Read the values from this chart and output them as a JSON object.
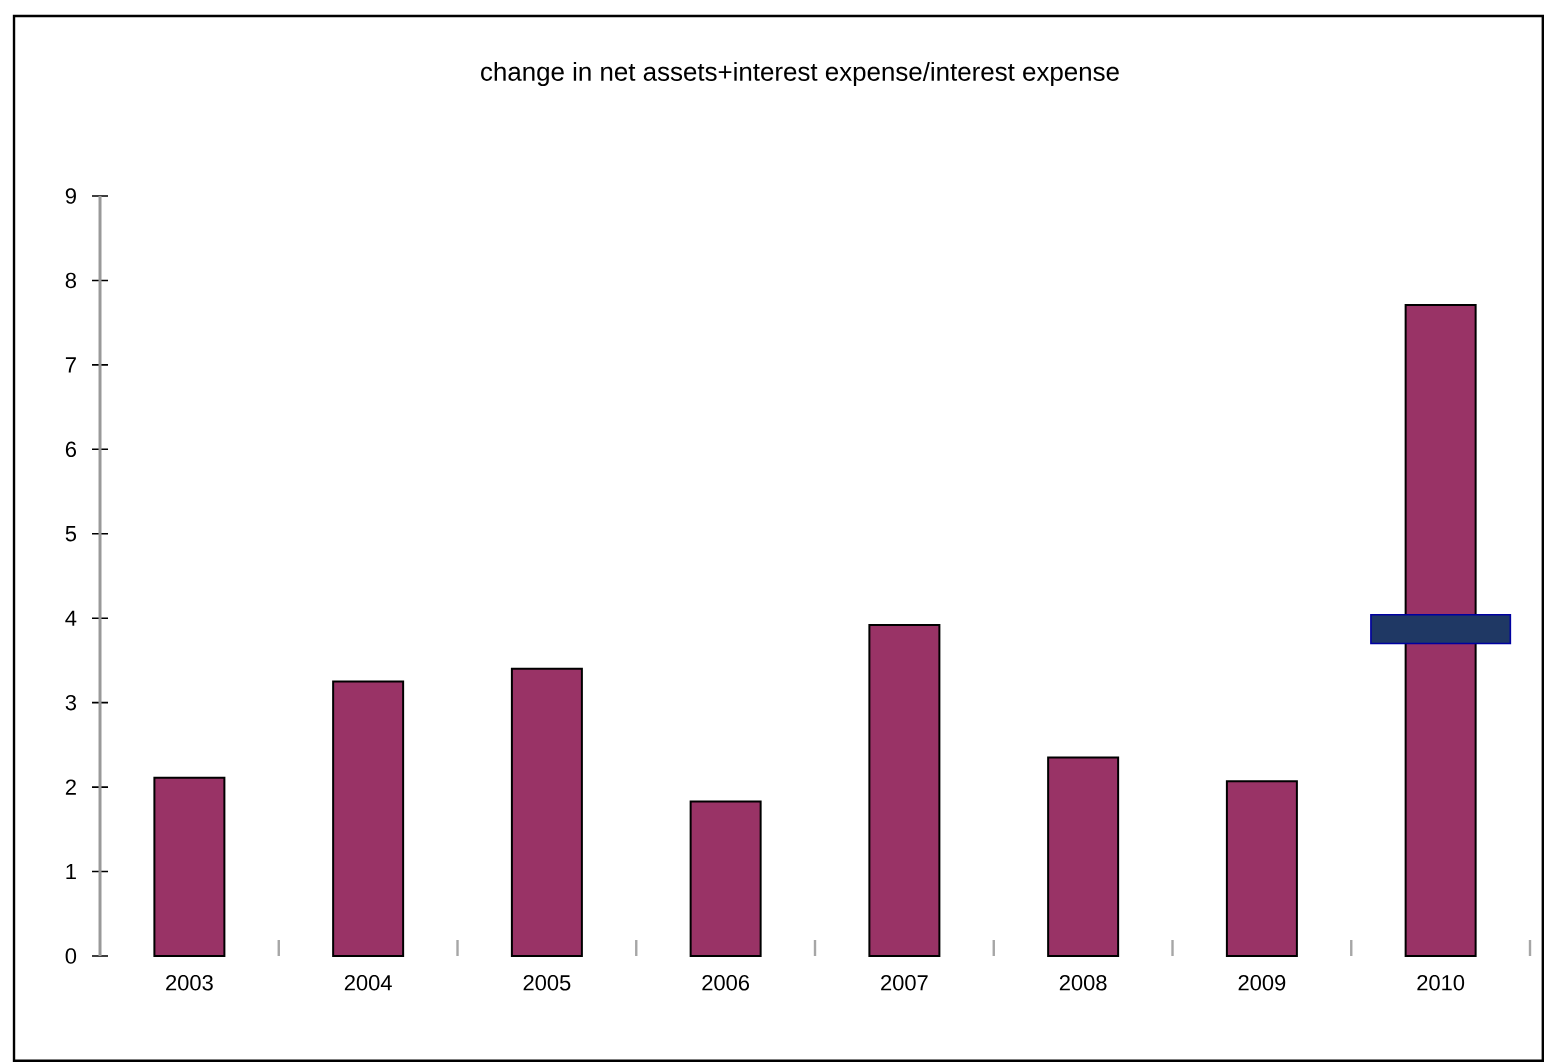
{
  "chart_data": {
    "type": "bar",
    "title": "change in net assets+interest expense/interest expense",
    "categories": [
      "2003",
      "2004",
      "2005",
      "2006",
      "2007",
      "2008",
      "2009",
      "2010"
    ],
    "series": [
      {
        "color": "#993366",
        "values": [
          2.11,
          3.25,
          3.4,
          1.83,
          3.92,
          2.35,
          2.07,
          7.71
        ]
      },
      {
        "color": "#1f3864",
        "base": [
          null,
          null,
          null,
          null,
          null,
          null,
          null,
          3.7
        ],
        "values": [
          null,
          null,
          null,
          null,
          null,
          null,
          null,
          0.34
        ]
      }
    ],
    "ylim": [
      0,
      9
    ],
    "yticks": [
      0,
      1,
      2,
      3,
      4,
      5,
      6,
      7,
      8,
      9
    ],
    "grid": false,
    "legend": false
  }
}
